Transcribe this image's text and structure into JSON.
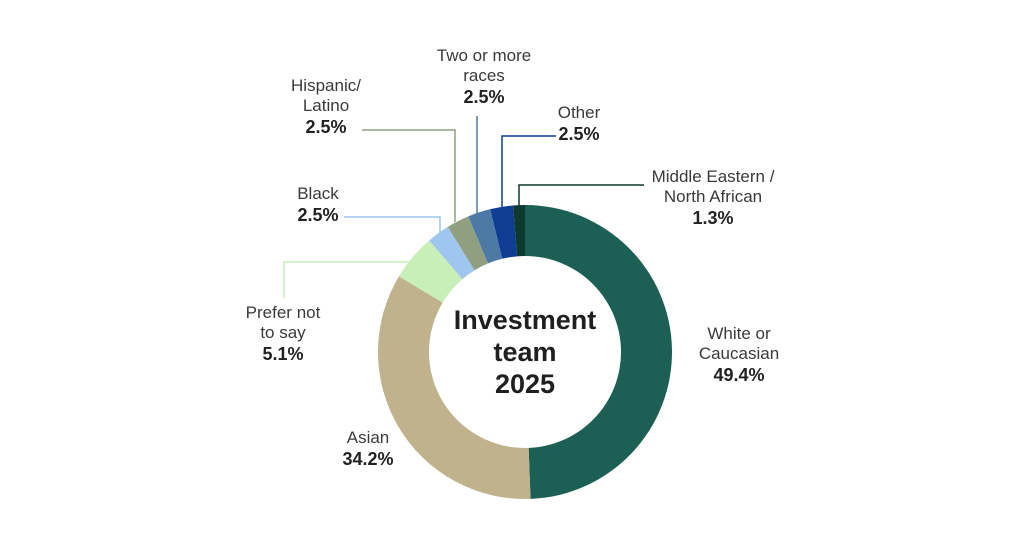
{
  "chart_data": {
    "type": "pie",
    "style": "donut",
    "title": "Investment team 2025",
    "center_label_lines": [
      "Investment",
      "team",
      "2025"
    ],
    "slices": [
      {
        "name": "White or Caucasian",
        "name_lines": [
          "White or",
          "Caucasian"
        ],
        "value": 49.4,
        "label": "49.4%",
        "color": "#1c5f54"
      },
      {
        "name": "Asian",
        "name_lines": [
          "Asian"
        ],
        "value": 34.2,
        "label": "34.2%",
        "color": "#bfb28c"
      },
      {
        "name": "Prefer not to say",
        "name_lines": [
          "Prefer not",
          "to say"
        ],
        "value": 5.1,
        "label": "5.1%",
        "color": "#c9efb8"
      },
      {
        "name": "Black",
        "name_lines": [
          "Black"
        ],
        "value": 2.5,
        "label": "2.5%",
        "color": "#9ec6ee"
      },
      {
        "name": "Hispanic/ Latino",
        "name_lines": [
          "Hispanic/",
          "Latino"
        ],
        "value": 2.5,
        "label": "2.5%",
        "color": "#8f9f7f"
      },
      {
        "name": "Two or more races",
        "name_lines": [
          "Two or more",
          "races"
        ],
        "value": 2.5,
        "label": "2.5%",
        "color": "#4d79a6"
      },
      {
        "name": "Other",
        "name_lines": [
          "Other"
        ],
        "value": 2.5,
        "label": "2.5%",
        "color": "#0e3d93"
      },
      {
        "name": "Middle Eastern / North African",
        "name_lines": [
          "Middle Eastern /",
          "North African"
        ],
        "value": 1.3,
        "label": "1.3%",
        "color": "#0e3a2e"
      }
    ]
  }
}
